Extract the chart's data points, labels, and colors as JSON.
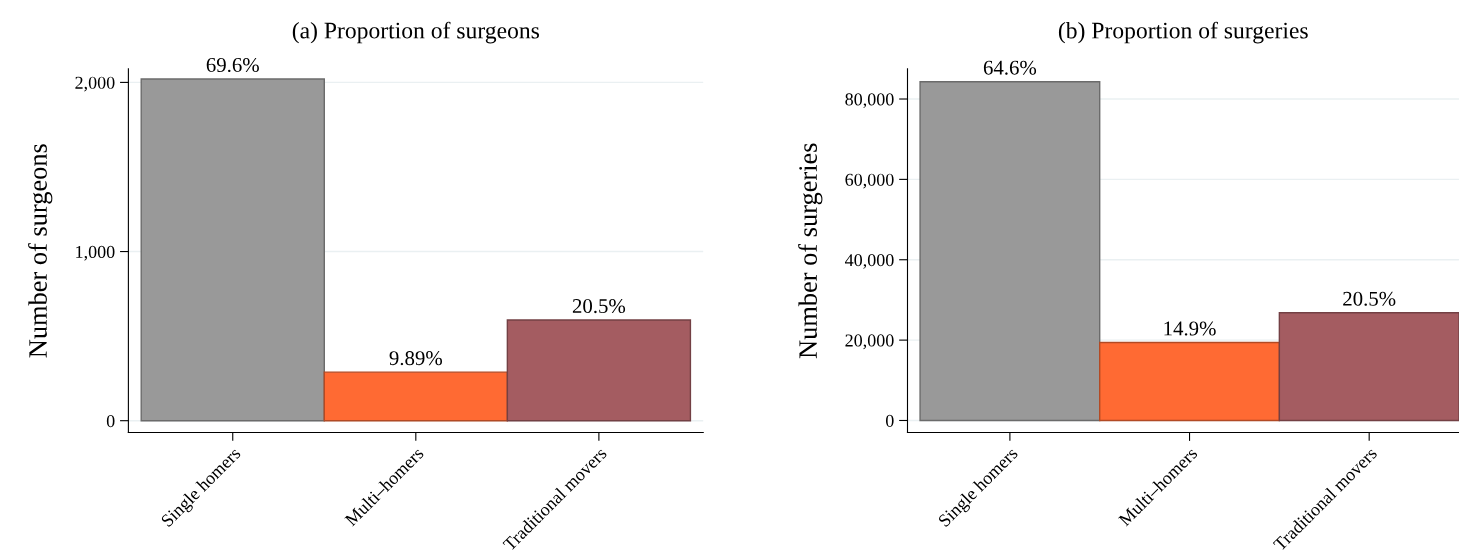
{
  "chart_data": [
    {
      "type": "bar",
      "title": "(a) Proportion of surgeons",
      "ylabel": "Number of surgeons",
      "categories": [
        "Single homers",
        "Multi–homers",
        "Traditional movers"
      ],
      "values": [
        2020,
        287,
        595
      ],
      "colors": [
        "#999999",
        "#ff6a33",
        "#a45c61"
      ],
      "annotations": [
        {
          "text": "69.6%",
          "x": "Single homers",
          "y": 2020
        },
        {
          "text": "9.89%",
          "x": "Multi–homers",
          "y": 287
        },
        {
          "text": "20.5%",
          "x": "Traditional movers",
          "y": 595
        }
      ],
      "ylim": [
        -70,
        2080
      ],
      "yticks": [
        {
          "value": 0,
          "label": "0"
        },
        {
          "value": 1000,
          "label": "1,000"
        },
        {
          "value": 2000,
          "label": "2,000"
        }
      ],
      "grid": "y",
      "legend": false
    },
    {
      "type": "bar",
      "title": "(b) Proportion of surgeries",
      "ylabel": "Number of surgeries",
      "categories": [
        "Single homers",
        "Multi–homers",
        "Traditional movers"
      ],
      "values": [
        84300,
        19400,
        26800
      ],
      "colors": [
        "#999999",
        "#ff6a33",
        "#a45c61"
      ],
      "annotations": [
        {
          "text": "64.6%",
          "x": "Single homers",
          "y": 84300
        },
        {
          "text": "14.9%",
          "x": "Multi–homers",
          "y": 19400
        },
        {
          "text": "20.5%",
          "x": "Traditional movers",
          "y": 26800
        }
      ],
      "ylim": [
        -3000,
        87500
      ],
      "yticks": [
        {
          "value": 0,
          "label": "0"
        },
        {
          "value": 20000,
          "label": "20,000"
        },
        {
          "value": 40000,
          "label": "40,000"
        },
        {
          "value": 60000,
          "label": "60,000"
        },
        {
          "value": 80000,
          "label": "80,000"
        }
      ],
      "grid": "y",
      "legend": false
    }
  ]
}
